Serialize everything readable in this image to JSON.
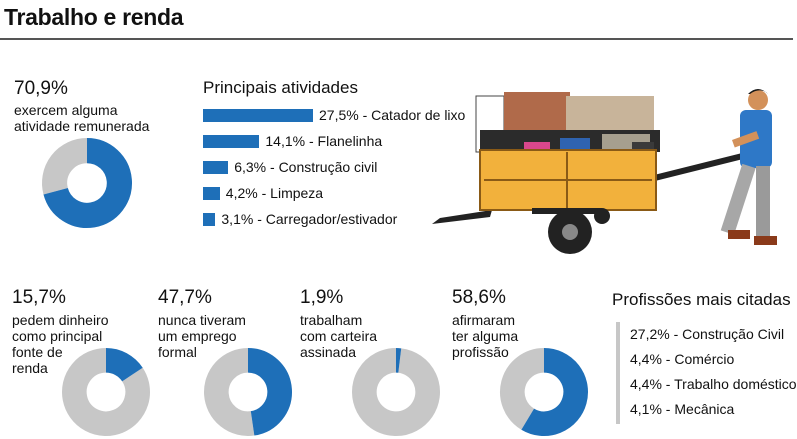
{
  "header": {
    "title": "Trabalho e renda"
  },
  "colors": {
    "accent": "#1e6fb8",
    "remainder": "#c7c7c7"
  },
  "top_stat": {
    "value": "70,9%",
    "fraction": 0.709,
    "line1": "exercem alguma",
    "line2": "atividade remunerada"
  },
  "activities": {
    "title": "Principais atividades",
    "items": [
      {
        "pct": "27,5%",
        "label": "Catador de lixo",
        "value": 27.5
      },
      {
        "pct": "14,1%",
        "label": "Flanelinha",
        "value": 14.1
      },
      {
        "pct": "6,3%",
        "label": "Construção civil",
        "value": 6.3
      },
      {
        "pct": "4,2%",
        "label": "Limpeza",
        "value": 4.2
      },
      {
        "pct": "3,1%",
        "label": "Carregador/estivador",
        "value": 3.1
      }
    ]
  },
  "bottom_stats": [
    {
      "value": "15,7%",
      "fraction": 0.157,
      "lines": [
        "pedem dinheiro",
        "como principal",
        "fonte de",
        "renda"
      ]
    },
    {
      "value": "47,7%",
      "fraction": 0.477,
      "lines": [
        "nunca tiveram",
        "um emprego",
        "formal"
      ]
    },
    {
      "value": "1,9%",
      "fraction": 0.019,
      "lines": [
        "trabalham",
        "com carteira",
        "assinada"
      ]
    },
    {
      "value": "58,6%",
      "fraction": 0.586,
      "lines": [
        "afirmaram",
        "ter alguma",
        "profissão"
      ]
    }
  ],
  "professions": {
    "title": "Profissões mais citadas",
    "items": [
      {
        "pct": "27,2%",
        "label": "Construção Civil"
      },
      {
        "pct": "4,4%",
        "label": "Comércio"
      },
      {
        "pct": "4,4%",
        "label": "Trabalho doméstico"
      },
      {
        "pct": "4,1%",
        "label": "Mecânica"
      }
    ]
  },
  "chart_data": [
    {
      "type": "pie",
      "labels": [
        "exercem alguma atividade remunerada",
        ""
      ],
      "values": [
        70.9,
        29.1
      ]
    },
    {
      "type": "bar",
      "title": "Principais atividades",
      "categories": [
        "Catador de lixo",
        "Flanelinha",
        "Construção civil",
        "Limpeza",
        "Carregador/estivador"
      ],
      "values": [
        27.5,
        14.1,
        6.3,
        4.2,
        3.1
      ]
    },
    {
      "type": "pie",
      "labels": [
        "pedem dinheiro como principal fonte de renda",
        ""
      ],
      "values": [
        15.7,
        84.3
      ]
    },
    {
      "type": "pie",
      "labels": [
        "nunca tiveram um emprego formal",
        ""
      ],
      "values": [
        47.7,
        52.3
      ]
    },
    {
      "type": "pie",
      "labels": [
        "trabalham com carteira assinada",
        ""
      ],
      "values": [
        1.9,
        98.1
      ]
    },
    {
      "type": "pie",
      "labels": [
        "afirmaram ter alguma profissão",
        ""
      ],
      "values": [
        58.6,
        41.4
      ]
    },
    {
      "type": "table",
      "title": "Profissões mais citadas",
      "categories": [
        "Construção Civil",
        "Comércio",
        "Trabalho doméstico",
        "Mecânica"
      ],
      "values": [
        27.2,
        4.4,
        4.4,
        4.1
      ]
    }
  ]
}
